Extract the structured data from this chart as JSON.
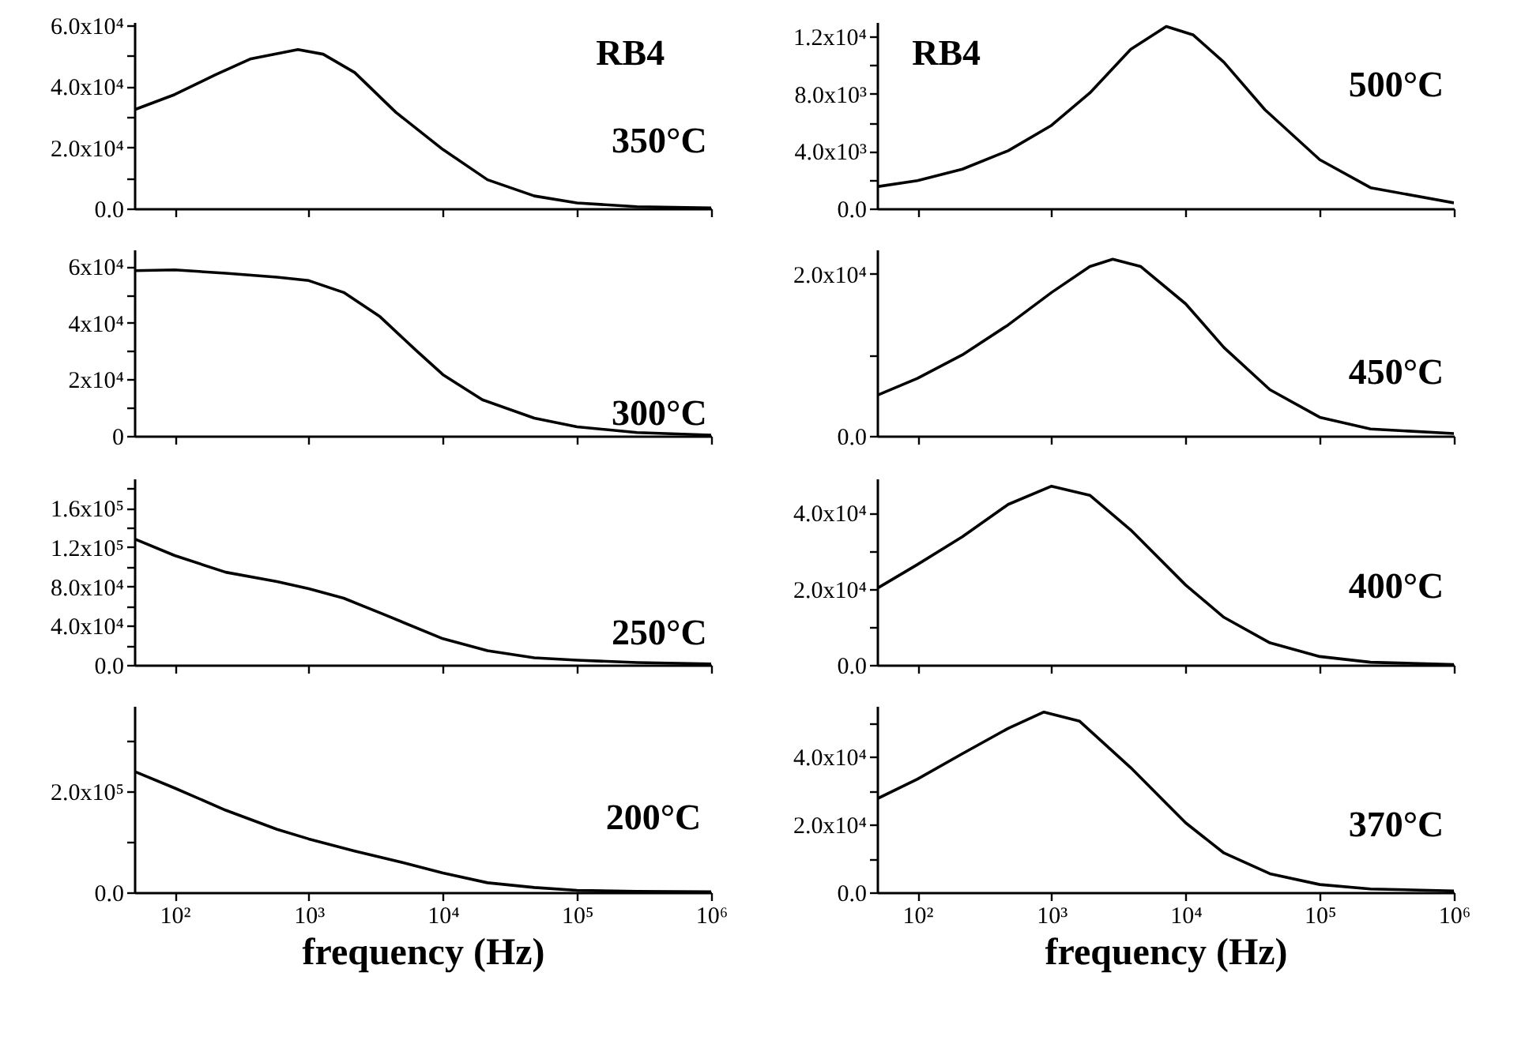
{
  "chart_data": [
    {
      "type": "line",
      "annotations": [
        "RB4",
        "350°C"
      ],
      "x": [
        50,
        100,
        200,
        370,
        830,
        1280,
        2200,
        4450,
        10000,
        21500,
        48000,
        100000,
        280000,
        1000000
      ],
      "series": [
        {
          "color": "#000000",
          "values": [
            32300,
            37300,
            43700,
            49000,
            52000,
            50500,
            44500,
            31500,
            19300,
            9400,
            4100,
            1800,
            600,
            200
          ]
        }
      ],
      "log": "x",
      "xlim": [
        50,
        1000000
      ],
      "xticks": [
        {
          "value": 100,
          "label": null
        },
        {
          "value": 1000,
          "label": null
        },
        {
          "value": 10000,
          "label": null
        },
        {
          "value": 100000,
          "label": null
        },
        {
          "value": 1000000,
          "label": null
        }
      ],
      "ylim": [
        0,
        61000
      ],
      "yticks": [
        {
          "value": 0,
          "label": "0.0"
        },
        {
          "value": 10000,
          "label": null
        },
        {
          "value": 20000,
          "label": "2.0x10⁴"
        },
        {
          "value": 30000,
          "label": null
        },
        {
          "value": 40000,
          "label": "4.0x10⁴"
        },
        {
          "value": 50000,
          "label": null
        },
        {
          "value": 60000,
          "label": "6.0x10⁴"
        }
      ],
      "tick_labels": "y",
      "grid": false
    },
    {
      "type": "line",
      "annotations": [
        "RB4",
        "500°C"
      ],
      "x": [
        50,
        100,
        216,
        475,
        1000,
        1930,
        3890,
        7170,
        11400,
        19300,
        38900,
        100000,
        239000,
        1000000
      ],
      "series": [
        {
          "color": "#000000",
          "values": [
            1520,
            1940,
            2740,
            4030,
            5800,
            8060,
            11100,
            12700,
            12100,
            10200,
            6900,
            3400,
            1450,
            390
          ]
        }
      ],
      "log": "x",
      "xlim": [
        50,
        1000000
      ],
      "xticks": [
        {
          "value": 100,
          "label": null
        },
        {
          "value": 1000,
          "label": null
        },
        {
          "value": 10000,
          "label": null
        },
        {
          "value": 100000,
          "label": null
        },
        {
          "value": 1000000,
          "label": null
        }
      ],
      "ylim": [
        0,
        13000
      ],
      "yticks": [
        {
          "value": 0,
          "label": "0.0"
        },
        {
          "value": 2000,
          "label": null
        },
        {
          "value": 4000,
          "label": "4.0x10³"
        },
        {
          "value": 6000,
          "label": null
        },
        {
          "value": 8000,
          "label": "8.0x10³"
        },
        {
          "value": 10000,
          "label": null
        },
        {
          "value": 12000,
          "label": "1.2x10⁴"
        }
      ],
      "tick_labels": "y",
      "grid": false
    },
    {
      "type": "line",
      "annotations": [
        "300°C"
      ],
      "x": [
        50,
        100,
        240,
        580,
        1000,
        1820,
        3400,
        6300,
        10000,
        19700,
        48000,
        100000,
        280000,
        1000000
      ],
      "series": [
        {
          "color": "#000000",
          "values": [
            58500,
            58800,
            57600,
            56200,
            55000,
            50800,
            42200,
            30300,
            21700,
            12800,
            6300,
            3200,
            1200,
            300
          ]
        }
      ],
      "log": "x",
      "xlim": [
        50,
        1000000
      ],
      "xticks": [
        {
          "value": 100,
          "label": null
        },
        {
          "value": 1000,
          "label": null
        },
        {
          "value": 10000,
          "label": null
        },
        {
          "value": 100000,
          "label": null
        },
        {
          "value": 1000000,
          "label": null
        }
      ],
      "ylim": [
        0,
        66000
      ],
      "yticks": [
        0,
        {
          "value": 10000,
          "label": null
        },
        {
          "value": 20000,
          "label": "2x10⁴"
        },
        {
          "value": 30000,
          "label": null
        },
        {
          "value": 40000,
          "label": "4x10⁴"
        },
        {
          "value": 50000,
          "label": null
        },
        {
          "value": 60000,
          "label": "6x10⁴"
        }
      ],
      "tick_labels": "y",
      "grid": false
    },
    {
      "type": "line",
      "annotations": [
        "450°C"
      ],
      "x": [
        50,
        100,
        216,
        475,
        1000,
        1930,
        2860,
        4630,
        10000,
        19300,
        42500,
        100000,
        239000,
        1000000
      ],
      "series": [
        {
          "color": "#000000",
          "values": [
            5000,
            7100,
            10000,
            13700,
            17700,
            20900,
            21800,
            20900,
            16300,
            10900,
            5700,
            2300,
            860,
            290
          ]
        }
      ],
      "log": "x",
      "xlim": [
        50,
        1000000
      ],
      "xticks": [
        {
          "value": 100,
          "label": null
        },
        {
          "value": 1000,
          "label": null
        },
        {
          "value": 10000,
          "label": null
        },
        {
          "value": 100000,
          "label": null
        },
        {
          "value": 1000000,
          "label": null
        }
      ],
      "ylim": [
        0,
        23000
      ],
      "yticks": [
        {
          "value": 0,
          "label": "0.0"
        },
        {
          "value": 10000,
          "label": null
        },
        {
          "value": 20000,
          "label": "2.0x10⁴"
        }
      ],
      "tick_labels": "y",
      "grid": false
    },
    {
      "type": "line",
      "annotations": [
        "250°C"
      ],
      "x": [
        50,
        100,
        240,
        580,
        1000,
        1820,
        3700,
        10000,
        21500,
        48000,
        100000,
        280000,
        1000000
      ],
      "series": [
        {
          "color": "#000000",
          "values": [
            128500,
            111500,
            94500,
            85000,
            77600,
            68000,
            51000,
            26700,
            14500,
            7300,
            4800,
            2400,
            1000
          ]
        }
      ],
      "log": "x",
      "xlim": [
        50,
        1000000
      ],
      "xticks": [
        {
          "value": 100,
          "label": null
        },
        {
          "value": 1000,
          "label": null
        },
        {
          "value": 10000,
          "label": null
        },
        {
          "value": 100000,
          "label": null
        },
        {
          "value": 1000000,
          "label": null
        }
      ],
      "ylim": [
        0,
        190000
      ],
      "yticks": [
        {
          "value": 0,
          "label": "0.0"
        },
        {
          "value": 20000,
          "label": null
        },
        {
          "value": 40000,
          "label": "4.0x10⁴"
        },
        {
          "value": 60000,
          "label": null
        },
        {
          "value": 80000,
          "label": "8.0x10⁴"
        },
        {
          "value": 100000,
          "label": null
        },
        {
          "value": 120000,
          "label": "1.2x10⁵"
        },
        {
          "value": 140000,
          "label": null
        },
        {
          "value": 160000,
          "label": "1.6x10⁵"
        },
        {
          "value": 180000,
          "label": null
        }
      ],
      "tick_labels": "y",
      "grid": false
    },
    {
      "type": "line",
      "annotations": [
        "400°C"
      ],
      "x": [
        50,
        100,
        216,
        475,
        1000,
        1930,
        3890,
        10000,
        19300,
        42500,
        100000,
        239000,
        1000000
      ],
      "series": [
        {
          "color": "#000000",
          "values": [
            20100,
            26400,
            33700,
            42200,
            47000,
            44600,
            35500,
            21000,
            12500,
            5800,
            2200,
            700,
            100
          ]
        }
      ],
      "log": "x",
      "xlim": [
        50,
        1000000
      ],
      "xticks": [
        {
          "value": 100,
          "label": null
        },
        {
          "value": 1000,
          "label": null
        },
        {
          "value": 10000,
          "label": null
        },
        {
          "value": 100000,
          "label": null
        },
        {
          "value": 1000000,
          "label": null
        }
      ],
      "ylim": [
        0,
        49000
      ],
      "yticks": [
        {
          "value": 0,
          "label": "0.0"
        },
        {
          "value": 10000,
          "label": null
        },
        {
          "value": 20000,
          "label": "2.0x10⁴"
        },
        {
          "value": 30000,
          "label": null
        },
        {
          "value": 40000,
          "label": "4.0x10⁴"
        }
      ],
      "tick_labels": "y",
      "grid": false
    },
    {
      "type": "line",
      "xlabel": "frequency (Hz)",
      "annotations": [
        "200°C"
      ],
      "x": [
        50,
        100,
        240,
        580,
        1000,
        2200,
        5200,
        10000,
        21500,
        48000,
        100000,
        280000,
        1000000
      ],
      "series": [
        {
          "color": "#000000",
          "values": [
            240000,
            207000,
            163000,
            125000,
            106000,
            82000,
            58000,
            38500,
            19000,
            9600,
            3800,
            1900,
            1000
          ]
        }
      ],
      "log": "x",
      "xlim": [
        50,
        1000000
      ],
      "xticks": [
        {
          "value": 100,
          "label": "10²"
        },
        {
          "value": 1000,
          "label": "10³"
        },
        {
          "value": 10000,
          "label": "10⁴"
        },
        {
          "value": 100000,
          "label": "10⁵"
        },
        {
          "value": 1000000,
          "label": "10⁶"
        }
      ],
      "ylim": [
        0,
        370000
      ],
      "yticks": [
        {
          "value": 0,
          "label": "0.0"
        },
        {
          "value": 100000,
          "label": null
        },
        {
          "value": 200000,
          "label": "2.0x10⁵"
        },
        {
          "value": 300000,
          "label": null
        }
      ],
      "grid": false
    },
    {
      "type": "line",
      "xlabel": "frequency (Hz)",
      "annotations": [
        "370°C"
      ],
      "x": [
        50,
        100,
        216,
        475,
        877,
        1620,
        3890,
        10000,
        19300,
        42500,
        100000,
        239000,
        1000000
      ],
      "series": [
        {
          "color": "#000000",
          "values": [
            27600,
            33400,
            40900,
            48400,
            53200,
            50500,
            36800,
            20500,
            11600,
            5500,
            2300,
            1000,
            400
          ]
        }
      ],
      "log": "x",
      "xlim": [
        50,
        1000000
      ],
      "xticks": [
        {
          "value": 100,
          "label": "10²"
        },
        {
          "value": 1000,
          "label": "10³"
        },
        {
          "value": 10000,
          "label": "10⁴"
        },
        {
          "value": 100000,
          "label": "10⁵"
        },
        {
          "value": 1000000,
          "label": "10⁶"
        }
      ],
      "ylim": [
        0,
        55000
      ],
      "yticks": [
        {
          "value": 0,
          "label": "0.0"
        },
        {
          "value": 10000,
          "label": null
        },
        {
          "value": 20000,
          "label": "2.0x10⁴"
        },
        {
          "value": 30000,
          "label": null
        },
        {
          "value": 40000,
          "label": "4.0x10⁴"
        },
        {
          "value": 50000,
          "label": null
        }
      ],
      "grid": false
    }
  ]
}
